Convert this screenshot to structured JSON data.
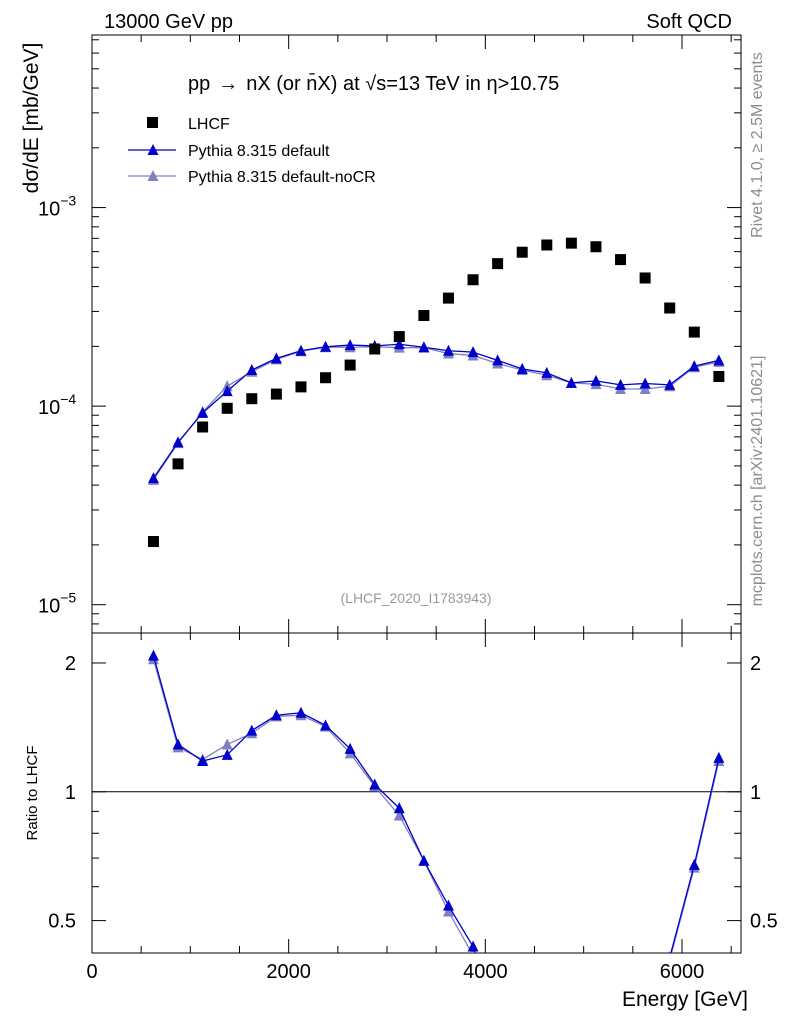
{
  "header": {
    "left": "13000 GeV pp",
    "right": "Soft QCD"
  },
  "side": {
    "rivet": "Rivet 4.1.0, ≥ 2.5M events",
    "mcplots": "mcplots.cern.ch [arXiv:2401.10621]"
  },
  "colors": {
    "data": "#000000",
    "pythia_default": "#0000cc",
    "pythia_nocr": "#8080c0",
    "watermark": "#999999",
    "side_text": "#8c8c8c"
  },
  "chart_data": [
    {
      "id": "main",
      "type": "scatter",
      "title": "pp → nX (or n̄X) at √s=13 TeV in η>10.75",
      "title_parts": {
        "pre": "pp",
        "arrow": "→",
        "mid": "nX (or ",
        "nbar": "n",
        "nbar_mark": "̄",
        "post": "X) at ",
        "sqrt": "√",
        "s_part": "s=13 TeV in ",
        "eta": "η",
        "tail": ">10.75"
      },
      "ylabel": "dσ/dE [mb/GeV]",
      "yscale": "log",
      "ylim": [
        7.2e-06,
        0.0074
      ],
      "xlim": [
        0,
        6600
      ],
      "y_ticks": [
        {
          "value": 1e-05,
          "base": "10",
          "exp": "−5"
        },
        {
          "value": 0.0001,
          "base": "10",
          "exp": "−4"
        },
        {
          "value": 0.001,
          "base": "10",
          "exp": "−3"
        }
      ],
      "watermark": "(LHCF_2020_I1783943)",
      "legend": [
        {
          "key": "lhcf",
          "label": "LHCF"
        },
        {
          "key": "default",
          "label": "Pythia 8.315 default"
        },
        {
          "key": "nocr",
          "label": "Pythia 8.315 default-noCR"
        }
      ],
      "x": [
        625,
        875,
        1125,
        1375,
        1625,
        1875,
        2125,
        2375,
        2625,
        2875,
        3125,
        3375,
        3625,
        3875,
        4125,
        4375,
        4625,
        4875,
        5125,
        5375,
        5625,
        5875,
        6125,
        6375
      ],
      "series": [
        {
          "key": "lhcf",
          "name": "LHCF",
          "marker": "square",
          "values": [
            2.08e-05,
            5.12e-05,
            7.85e-05,
            9.75e-05,
            0.000109,
            0.000115,
            0.000125,
            0.000139,
            0.000161,
            0.000194,
            0.000224,
            0.000286,
            0.00035,
            0.000433,
            0.000522,
            0.000596,
            0.000648,
            0.000662,
            0.000635,
            0.000547,
            0.000442,
            0.000312,
            0.000236,
            0.000141
          ]
        },
        {
          "key": "default",
          "name": "Pythia 8.315 default",
          "marker": "triangle",
          "values": [
            4.34e-05,
            6.58e-05,
            9.25e-05,
            0.000119,
            0.000152,
            0.000174,
            0.00019,
            0.000199,
            0.000203,
            0.000201,
            0.000205,
            0.000198,
            0.00019,
            0.000187,
            0.00017,
            0.000154,
            0.000147,
            0.000131,
            0.000134,
            0.000128,
            0.00013,
            0.000128,
            0.000159,
            0.00017
          ]
        },
        {
          "key": "nocr",
          "name": "Pythia 8.315 default-noCR",
          "marker": "triangle",
          "values": [
            4.25e-05,
            6.51e-05,
            9.35e-05,
            0.000126,
            0.000149,
            0.000172,
            0.000189,
            0.000198,
            0.000198,
            0.000199,
            0.000197,
            0.000197,
            0.000184,
            0.00018,
            0.000164,
            0.000152,
            0.000143,
            0.000131,
            0.000129,
            0.000122,
            0.000122,
            0.000126,
            0.000157,
            0.000167
          ]
        }
      ]
    },
    {
      "id": "ratio",
      "type": "line",
      "ylabel": "Ratio to LHCF",
      "xlabel": "Energy [GeV]",
      "yscale": "log",
      "ylim": [
        0.42,
        2.35
      ],
      "xlim": [
        0,
        6600
      ],
      "x_ticks": [
        "0",
        "2000",
        "4000",
        "6000"
      ],
      "x_tick_values": [
        0,
        2000,
        4000,
        6000
      ],
      "y_ticks": [
        {
          "value": 0.5,
          "label": "0.5"
        },
        {
          "value": 1,
          "label": "1"
        },
        {
          "value": 2,
          "label": "2"
        }
      ],
      "reference": 1,
      "x": [
        625,
        875,
        1125,
        1375,
        1625,
        1875,
        2125,
        2375,
        2625,
        2875,
        3125,
        3375,
        3625,
        3875,
        5875,
        6125,
        6375
      ],
      "series": [
        {
          "key": "default",
          "name": "Pythia 8.315 default",
          "values": [
            2.08,
            1.29,
            1.18,
            1.22,
            1.39,
            1.51,
            1.53,
            1.43,
            1.26,
            1.04,
            0.915,
            0.69,
            0.542,
            0.435,
            0.41,
            0.675,
            1.2
          ]
        },
        {
          "key": "nocr",
          "name": "Pythia 8.315 default-noCR",
          "values": [
            2.04,
            1.27,
            1.19,
            1.29,
            1.37,
            1.5,
            1.51,
            1.42,
            1.23,
            1.03,
            0.88,
            0.69,
            0.525,
            0.415,
            0.405,
            0.665,
            1.18
          ]
        }
      ]
    }
  ]
}
